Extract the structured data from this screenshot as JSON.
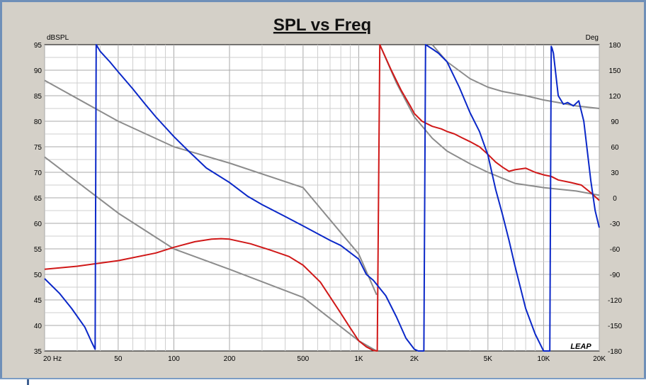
{
  "chart_data": {
    "type": "line",
    "title": "SPL vs Freq",
    "left_axis_label": "dBSPL",
    "right_axis_label": "Deg",
    "x_scale": "log",
    "xlim": [
      20,
      20000
    ],
    "ylim_left": [
      35,
      95
    ],
    "ylim_right": [
      -180,
      180
    ],
    "x_ticks": [
      {
        "value": 20,
        "label": "20  Hz"
      },
      {
        "value": 50,
        "label": "50"
      },
      {
        "value": 100,
        "label": "100"
      },
      {
        "value": 200,
        "label": "200"
      },
      {
        "value": 500,
        "label": "500"
      },
      {
        "value": 1000,
        "label": "1K"
      },
      {
        "value": 2000,
        "label": "2K"
      },
      {
        "value": 5000,
        "label": "5K"
      },
      {
        "value": 10000,
        "label": "10K"
      },
      {
        "value": 20000,
        "label": "20K"
      }
    ],
    "left_ticks": [
      "95",
      "90",
      "85",
      "80",
      "75",
      "70",
      "65",
      "60",
      "55",
      "50",
      "45",
      "40",
      "35"
    ],
    "right_ticks": [
      "180",
      "150",
      "120",
      "90",
      "60",
      "30",
      "0",
      "-30",
      "-60",
      "-90",
      "-120",
      "-150",
      "-180"
    ],
    "grid": true,
    "logo": "LEAP",
    "colors": {
      "spl": "#d01818",
      "phase": "#0b28c8",
      "reference": "#8c8c8c"
    },
    "series": [
      {
        "axis": "left",
        "color": "#d01818",
        "x": [
          20,
          30,
          50,
          80,
          100,
          130,
          160,
          180,
          200,
          260,
          330,
          420,
          500,
          620,
          780,
          900,
          1000,
          1100,
          1200,
          1260,
          1300,
          1500,
          1700,
          1900,
          2000,
          2200,
          2500,
          2800,
          3000,
          3300,
          3600,
          4000,
          4500,
          5000,
          5500,
          6000,
          6500,
          7000,
          8000,
          9000,
          10000,
          11000,
          12000,
          14000,
          16000,
          18000,
          20000
        ],
        "values": [
          51,
          51.6,
          52.7,
          54.2,
          55.3,
          56.4,
          56.9,
          57.0,
          56.9,
          56.0,
          54.8,
          53.5,
          51.8,
          48.5,
          43.0,
          39.5,
          37.0,
          35.8,
          35.1,
          35,
          95,
          90,
          86,
          83,
          81.5,
          80,
          79,
          78.5,
          78,
          77.5,
          76.8,
          76,
          75,
          73.5,
          72,
          71,
          70.2,
          70.5,
          70.8,
          70,
          69.5,
          69.2,
          68.5,
          68,
          67.5,
          66,
          64.5
        ]
      },
      {
        "axis": "right",
        "color": "#0b28c8",
        "x": [
          20,
          24,
          28,
          33,
          36,
          37.5,
          38,
          40,
          45,
          50,
          60,
          70,
          80,
          100,
          120,
          150,
          200,
          250,
          300,
          400,
          500,
          700,
          800,
          1000,
          1100,
          1200,
          1400,
          1600,
          1800,
          2000,
          2100,
          2200,
          2250,
          2300,
          2500,
          2700,
          3000,
          3500,
          4000,
          4500,
          5000,
          5500,
          6000,
          6500,
          7000,
          8000,
          9000,
          10000,
          10500,
          10800,
          11000,
          11100,
          11300,
          12000,
          12800,
          13500,
          14500,
          15500,
          16500,
          18000,
          19000,
          20000
        ],
        "values": [
          -95,
          -112,
          -130,
          -152,
          -170,
          -178,
          180,
          172,
          160,
          148,
          128,
          110,
          95,
          72,
          55,
          35,
          18,
          2,
          -8,
          -22,
          -33,
          -50,
          -56,
          -72,
          -90,
          -97,
          -115,
          -140,
          -165,
          -178,
          -180,
          -180,
          -180,
          180,
          175,
          170,
          160,
          130,
          100,
          78,
          50,
          10,
          -20,
          -50,
          -80,
          -130,
          -160,
          -180,
          -180,
          -180,
          178,
          176,
          170,
          120,
          110,
          112,
          108,
          114,
          90,
          20,
          -15,
          -35
        ]
      },
      {
        "axis": "left",
        "color": "#8c8c8c",
        "x": [
          20,
          50,
          100,
          200,
          500,
          1000,
          1250
        ],
        "values": [
          88,
          80,
          75,
          71.8,
          67,
          54,
          46
        ]
      },
      {
        "axis": "left",
        "color": "#8c8c8c",
        "x": [
          20,
          50,
          100,
          200,
          500,
          1000,
          1250
        ],
        "values": [
          73,
          62,
          55,
          51,
          45.5,
          37,
          35
        ]
      },
      {
        "axis": "right",
        "color": "#8c8c8c",
        "x": [
          1300,
          1600,
          2000,
          2500,
          3000,
          4000,
          5000,
          7000,
          10000,
          15000,
          20000
        ],
        "values": [
          180,
          135,
          95,
          70,
          55,
          40,
          30,
          17,
          12,
          8,
          3
        ]
      },
      {
        "axis": "right",
        "color": "#8c8c8c",
        "x": [
          2500,
          3000,
          4000,
          5000,
          6000,
          8000,
          10000,
          12000,
          15000,
          20000
        ],
        "values": [
          180,
          160,
          140,
          130,
          125,
          120,
          115,
          112,
          108,
          105
        ]
      }
    ]
  }
}
